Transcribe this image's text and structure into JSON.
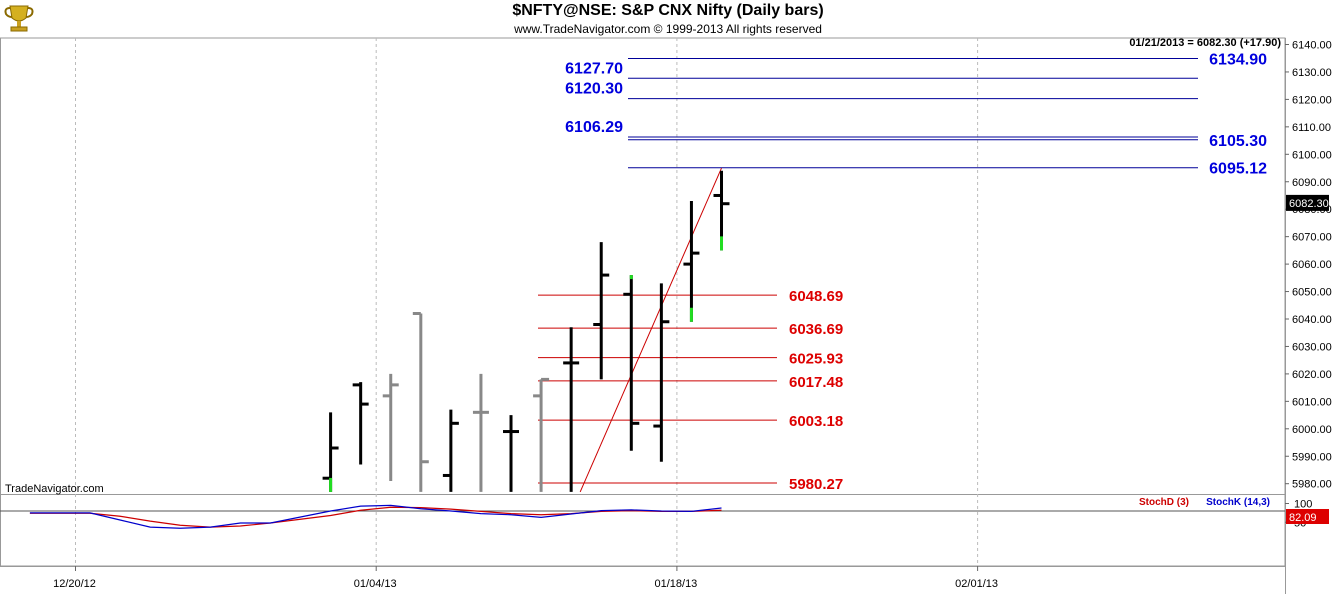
{
  "header": {
    "title": "$NFTY@NSE:  S&P CNX Nifty  (Daily bars)",
    "copyright": "www.TradeNavigator.com © 1999-2013 All rights reserved",
    "logo_icon": "trophy-logo-icon"
  },
  "colors": {
    "up_bar": "#000000",
    "old_bar": "#888888",
    "highlight_low": "#22dd22",
    "resistance_line": "#000099",
    "resistance_label": "#0000dd",
    "support_line": "#cc0000",
    "support_label": "#dd0000",
    "trendline": "#cc0000",
    "stoch_d": "#cc0000",
    "stoch_k": "#0000cc"
  },
  "chart_data": [
    {
      "type": "ohlc",
      "title": "$NFTY@NSE:  S&P CNX Nifty  (Daily bars)",
      "watermark": "TradeNavigator.com",
      "info_line": "01/21/2013 = 6082.30 (+17.90)",
      "last_price_label": "6082.30",
      "ylim": [
        5977,
        6143
      ],
      "y_ticks": [
        "6140.00",
        "6130.00",
        "6120.00",
        "6110.00",
        "6100.00",
        "6090.00",
        "6080.00",
        "6070.00",
        "6060.00",
        "6050.00",
        "6040.00",
        "6030.00",
        "6020.00",
        "6010.00",
        "6000.00",
        "5990.00",
        "5980.00"
      ],
      "y_tick_values": [
        6140,
        6130,
        6120,
        6110,
        6100,
        6090,
        6080,
        6070,
        6060,
        6050,
        6040,
        6030,
        6020,
        6010,
        6000,
        5990,
        5980
      ],
      "x_ticks": [
        {
          "label": "12/20/12",
          "index": 0
        },
        {
          "label": "01/04/13",
          "index": 10
        },
        {
          "label": "01/18/13",
          "index": 20
        },
        {
          "label": "02/01/13",
          "index": 30
        }
      ],
      "bars": [
        {
          "index": 8.5,
          "open": 5982,
          "high": 6006,
          "low": 5977,
          "close": 5993,
          "style": "up",
          "low_tail": 5977
        },
        {
          "index": 9.5,
          "open": 6016,
          "high": 6017,
          "low": 5987,
          "close": 6009,
          "style": "up"
        },
        {
          "index": 10.5,
          "open": 6012,
          "high": 6020,
          "low": 5981,
          "close": 6016,
          "style": "old"
        },
        {
          "index": 11.5,
          "open": 6042,
          "high": 6042,
          "low": 5977,
          "close": 5988,
          "style": "old"
        },
        {
          "index": 12.5,
          "open": 5983,
          "high": 6007,
          "low": 5977,
          "close": 6002,
          "style": "up"
        },
        {
          "index": 13.5,
          "open": 6006,
          "high": 6020,
          "low": 5977,
          "close": 6006,
          "style": "old"
        },
        {
          "index": 14.5,
          "open": 5999,
          "high": 6005,
          "low": 5977,
          "close": 5999,
          "style": "up"
        },
        {
          "index": 15.5,
          "open": 6012,
          "high": 6018,
          "low": 5977,
          "close": 6018,
          "style": "old"
        },
        {
          "index": 16.5,
          "open": 6024,
          "high": 6037,
          "low": 5977,
          "close": 6024,
          "style": "up"
        },
        {
          "index": 17.5,
          "open": 6038,
          "high": 6068,
          "low": 6018,
          "close": 6056,
          "style": "up"
        },
        {
          "index": 18.5,
          "open": 6049,
          "high": 6056,
          "low": 5992,
          "close": 6002,
          "style": "up",
          "high_tail": 6056
        },
        {
          "index": 19.5,
          "open": 6001,
          "high": 6053,
          "low": 5988,
          "close": 6039,
          "style": "up"
        },
        {
          "index": 20.5,
          "open": 6060,
          "high": 6083,
          "low": 6039,
          "close": 6064,
          "style": "up",
          "low_tail": 6039
        },
        {
          "index": 21.5,
          "open": 6085,
          "high": 6094,
          "low": 6065,
          "close": 6082,
          "style": "up",
          "low_tail": 6065
        }
      ],
      "resistance_levels": [
        {
          "value": 6134.9,
          "label": "6134.90",
          "label_side": "right"
        },
        {
          "value": 6127.7,
          "label": "6127.70",
          "label_side": "left"
        },
        {
          "value": 6120.3,
          "label": "6120.30",
          "label_side": "left"
        },
        {
          "value": 6106.29,
          "label": "6106.29",
          "label_side": "left"
        },
        {
          "value": 6105.3,
          "label": "6105.30",
          "label_side": "right"
        },
        {
          "value": 6095.12,
          "label": "6095.12",
          "label_side": "right"
        }
      ],
      "support_levels": [
        {
          "value": 6048.69,
          "label": "6048.69"
        },
        {
          "value": 6036.69,
          "label": "6036.69"
        },
        {
          "value": 6025.93,
          "label": "6025.93"
        },
        {
          "value": 6017.48,
          "label": "6017.48"
        },
        {
          "value": 6003.18,
          "label": "6003.18"
        },
        {
          "value": 5980.27,
          "label": "5980.27"
        }
      ],
      "trendline": {
        "from": {
          "index": 16.8,
          "value": 5977
        },
        "to": {
          "index": 21.5,
          "value": 6095
        }
      }
    },
    {
      "type": "line",
      "legend": [
        "StochD (3)",
        "StochK (14,3)"
      ],
      "ylim": [
        0,
        110
      ],
      "y_ticks": [
        "100",
        "50"
      ],
      "y_tick_values": [
        100,
        50
      ],
      "current_value_label": "82.09",
      "x": [
        -1.5,
        -0.5,
        0.5,
        1.5,
        2.5,
        3.5,
        4.5,
        5.5,
        6.5,
        7.5,
        8.5,
        9.5,
        10.5,
        11.5,
        12.5,
        13.5,
        14.5,
        15.5,
        16.5,
        17.5,
        18.5,
        19.5,
        20.5,
        21.5
      ],
      "series": [
        {
          "name": "StochD (3)",
          "values": [
            74,
            74,
            74,
            66,
            53,
            42,
            37,
            40,
            48,
            58,
            68,
            82,
            90,
            89,
            85,
            79,
            73,
            70,
            73,
            79,
            81,
            79,
            79,
            82
          ]
        },
        {
          "name": "StochK (14,3)",
          "values": [
            75,
            75,
            75,
            56,
            37,
            34,
            37,
            48,
            48,
            64,
            80,
            93,
            95,
            86,
            80,
            73,
            70,
            63,
            72,
            81,
            83,
            80,
            79,
            88
          ]
        }
      ]
    }
  ]
}
